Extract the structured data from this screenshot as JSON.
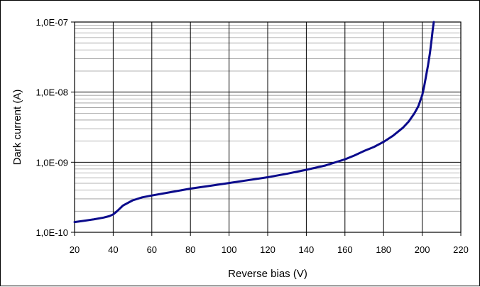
{
  "chart_data": {
    "type": "line",
    "title": "",
    "xlabel": "Reverse bias (V)",
    "ylabel": "Dark current  (A)",
    "x_scale": "linear",
    "y_scale": "log",
    "xlim": [
      20,
      220
    ],
    "ylim": [
      1e-10,
      1e-07
    ],
    "x_ticks": [
      20,
      40,
      60,
      80,
      100,
      120,
      140,
      160,
      180,
      200,
      220
    ],
    "y_tick_values": [
      1e-10,
      1e-09,
      1e-08,
      1e-07
    ],
    "y_tick_labels": [
      "1,0E-10",
      "1,0E-09",
      "1,0E-08",
      "1,0E-07"
    ],
    "grid": "major vertical and major/minor horizontal",
    "legend": "none",
    "series": [
      {
        "color": "#0b0b8c",
        "x": [
          20,
          25,
          30,
          35,
          38,
          40,
          42,
          45,
          50,
          55,
          60,
          70,
          80,
          90,
          100,
          110,
          120,
          130,
          140,
          150,
          160,
          165,
          170,
          175,
          180,
          185,
          190,
          193,
          196,
          198,
          200,
          201,
          202,
          203,
          204,
          205,
          205.5,
          206
        ],
        "y": [
          1.4e-10,
          1.46e-10,
          1.53e-10,
          1.62e-10,
          1.7e-10,
          1.8e-10,
          2e-10,
          2.4e-10,
          2.85e-10,
          3.15e-10,
          3.35e-10,
          3.75e-10,
          4.2e-10,
          4.6e-10,
          5.05e-10,
          5.55e-10,
          6.1e-10,
          6.85e-10,
          7.8e-10,
          9e-10,
          1.1e-09,
          1.25e-09,
          1.45e-09,
          1.65e-09,
          1.95e-09,
          2.4e-09,
          3.1e-09,
          3.8e-09,
          5e-09,
          6.3e-09,
          9e-09,
          1.2e-08,
          1.7e-08,
          2.4e-08,
          3.6e-08,
          6e-08,
          8e-08,
          1e-07
        ]
      }
    ]
  }
}
